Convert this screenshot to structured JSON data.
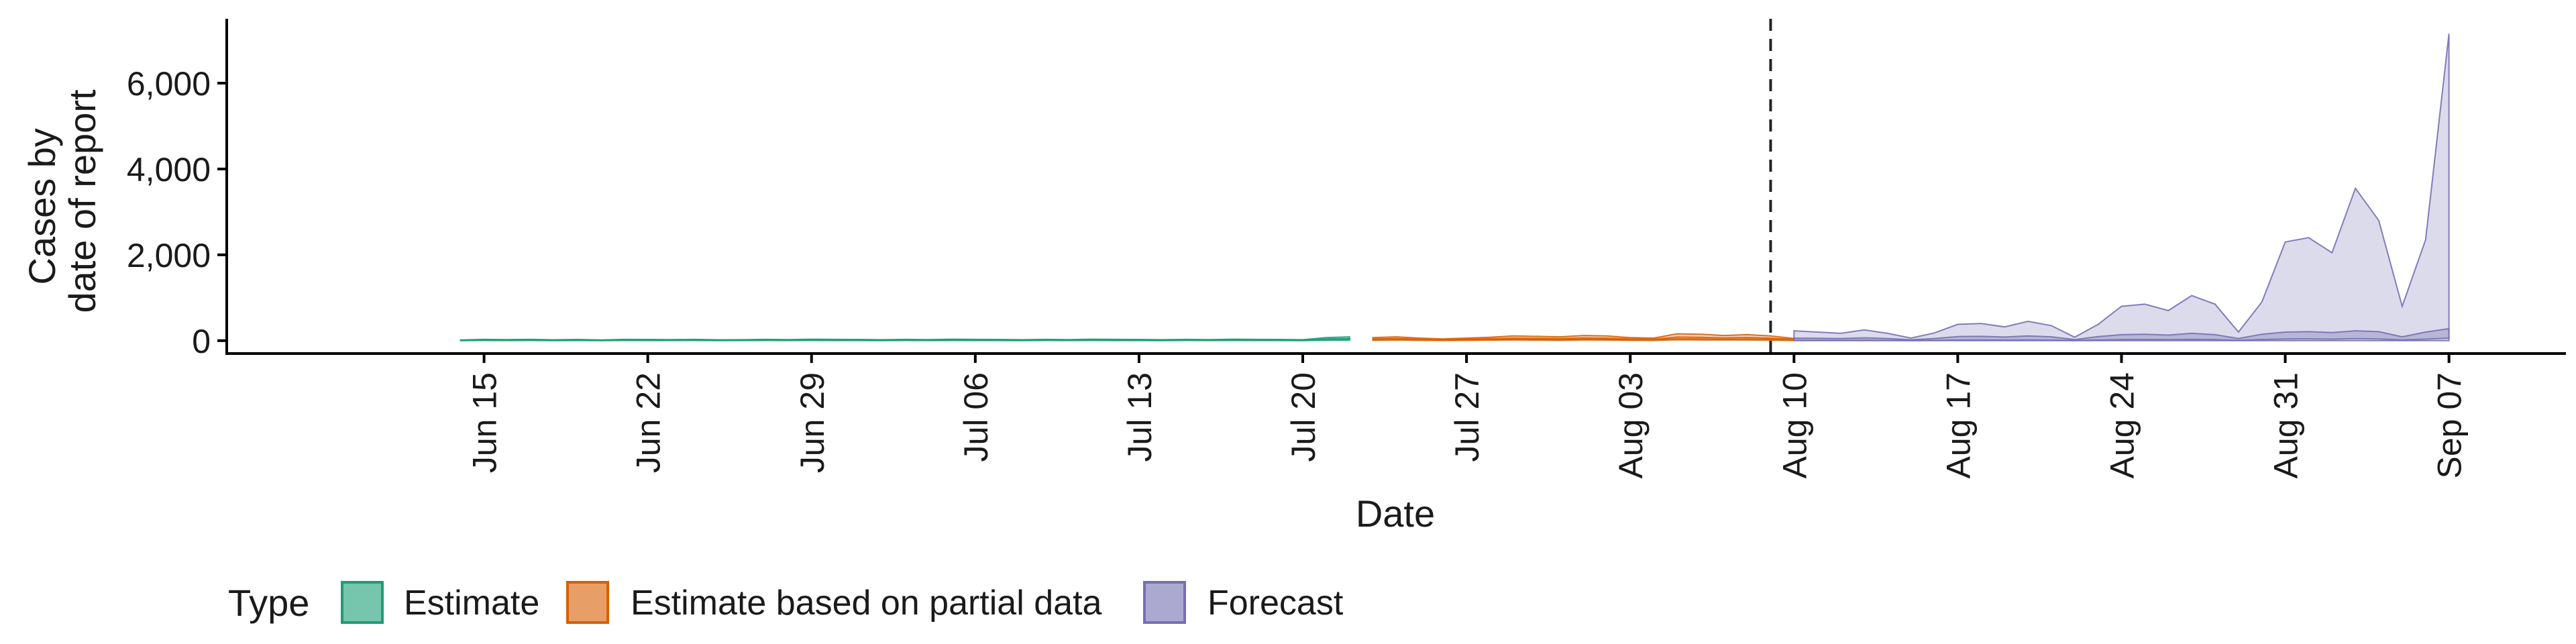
{
  "chart_data": {
    "type": "area",
    "title": "",
    "xlabel": "Date",
    "ylabel_lines": [
      "Cases by",
      "date of report"
    ],
    "xlim": [
      "2020-06-04",
      "2020-09-12"
    ],
    "ylim": [
      -300,
      7500
    ],
    "yticks": [
      0,
      2000,
      4000,
      6000
    ],
    "ytick_labels": [
      "0",
      "2,000",
      "4,000",
      "6,000"
    ],
    "xticks": [
      {
        "date": "2020-06-15",
        "label": "Jun 15"
      },
      {
        "date": "2020-06-22",
        "label": "Jun 22"
      },
      {
        "date": "2020-06-29",
        "label": "Jun 29"
      },
      {
        "date": "2020-07-06",
        "label": "Jul 06"
      },
      {
        "date": "2020-07-13",
        "label": "Jul 13"
      },
      {
        "date": "2020-07-20",
        "label": "Jul 20"
      },
      {
        "date": "2020-07-27",
        "label": "Jul 27"
      },
      {
        "date": "2020-08-03",
        "label": "Aug 03"
      },
      {
        "date": "2020-08-10",
        "label": "Aug 10"
      },
      {
        "date": "2020-08-17",
        "label": "Aug 17"
      },
      {
        "date": "2020-08-24",
        "label": "Aug 24"
      },
      {
        "date": "2020-08-31",
        "label": "Aug 31"
      },
      {
        "date": "2020-09-07",
        "label": "Sep 07"
      }
    ],
    "vline_date": "2020-08-09",
    "grid": false,
    "legend": {
      "title": "Type",
      "position": "bottom",
      "items": [
        {
          "label": "Estimate",
          "fill": "#1b9e77"
        },
        {
          "label": "Estimate based on partial data",
          "fill": "#d95f02"
        },
        {
          "label": "Forecast",
          "fill": "#7570b3"
        }
      ]
    },
    "series": [
      {
        "name": "Estimate",
        "color": "#1b9e77",
        "start": "2020-06-14",
        "outer_upper": [
          15,
          30,
          25,
          30,
          20,
          28,
          18,
          30,
          28,
          25,
          30,
          20,
          22,
          30,
          25,
          35,
          30,
          28,
          22,
          30,
          25,
          35,
          30,
          28,
          22,
          30,
          25,
          35,
          30,
          28,
          22,
          30,
          25,
          35,
          30,
          28,
          22,
          70,
          90
        ],
        "outer_lower": [
          0,
          5,
          3,
          5,
          2,
          4,
          1,
          5,
          4,
          3,
          5,
          2,
          3,
          5,
          3,
          5,
          4,
          3,
          2,
          5,
          3,
          5,
          4,
          3,
          2,
          5,
          3,
          5,
          4,
          3,
          2,
          5,
          3,
          5,
          4,
          3,
          2,
          10,
          12
        ],
        "inner_upper": [
          10,
          18,
          15,
          18,
          12,
          16,
          10,
          18,
          16,
          14,
          18,
          12,
          13,
          18,
          14,
          20,
          18,
          16,
          13,
          18,
          14,
          20,
          18,
          16,
          13,
          18,
          14,
          20,
          18,
          16,
          13,
          18,
          14,
          20,
          18,
          16,
          13,
          40,
          50
        ],
        "inner_lower": [
          3,
          8,
          6,
          8,
          5,
          7,
          4,
          8,
          7,
          6,
          8,
          5,
          6,
          8,
          6,
          9,
          8,
          7,
          5,
          8,
          6,
          9,
          8,
          7,
          5,
          8,
          6,
          9,
          8,
          7,
          5,
          8,
          6,
          9,
          8,
          7,
          5,
          20,
          25
        ]
      },
      {
        "name": "Estimate based on partial data",
        "color": "#d95f02",
        "start": "2020-07-23",
        "outer_upper": [
          70,
          90,
          60,
          40,
          60,
          80,
          110,
          100,
          90,
          120,
          110,
          70,
          60,
          160,
          150,
          120,
          140,
          110,
          50
        ],
        "outer_lower": [
          10,
          15,
          8,
          5,
          8,
          12,
          15,
          12,
          10,
          15,
          14,
          8,
          6,
          20,
          18,
          15,
          16,
          12,
          5
        ],
        "inner_upper": [
          40,
          50,
          35,
          22,
          35,
          45,
          60,
          55,
          50,
          65,
          60,
          40,
          33,
          85,
          80,
          65,
          75,
          60,
          28
        ],
        "inner_lower": [
          18,
          25,
          16,
          10,
          16,
          22,
          28,
          25,
          22,
          30,
          28,
          18,
          15,
          40,
          38,
          30,
          35,
          28,
          12
        ]
      },
      {
        "name": "Forecast",
        "color": "#7570b3",
        "start": "2020-08-10",
        "outer_upper": [
          230,
          200,
          170,
          250,
          170,
          60,
          180,
          380,
          400,
          320,
          450,
          350,
          80,
          380,
          800,
          850,
          700,
          1050,
          850,
          200,
          900,
          2300,
          2400,
          2050,
          3550,
          2800,
          800,
          2350,
          7150
        ],
        "outer_lower": [
          0,
          0,
          0,
          0,
          0,
          0,
          0,
          0,
          0,
          0,
          0,
          0,
          0,
          0,
          0,
          0,
          0,
          0,
          0,
          0,
          0,
          0,
          0,
          0,
          0,
          0,
          0,
          0,
          0
        ],
        "inner_upper": [
          60,
          55,
          50,
          65,
          50,
          20,
          50,
          95,
          100,
          85,
          110,
          90,
          25,
          95,
          140,
          150,
          130,
          170,
          140,
          50,
          150,
          200,
          210,
          190,
          230,
          210,
          90,
          200,
          280
        ],
        "inner_lower": [
          10,
          8,
          6,
          10,
          6,
          2,
          6,
          14,
          15,
          12,
          16,
          13,
          3,
          14,
          25,
          26,
          22,
          30,
          25,
          6,
          26,
          40,
          42,
          36,
          48,
          40,
          15,
          36,
          60
        ]
      }
    ]
  }
}
